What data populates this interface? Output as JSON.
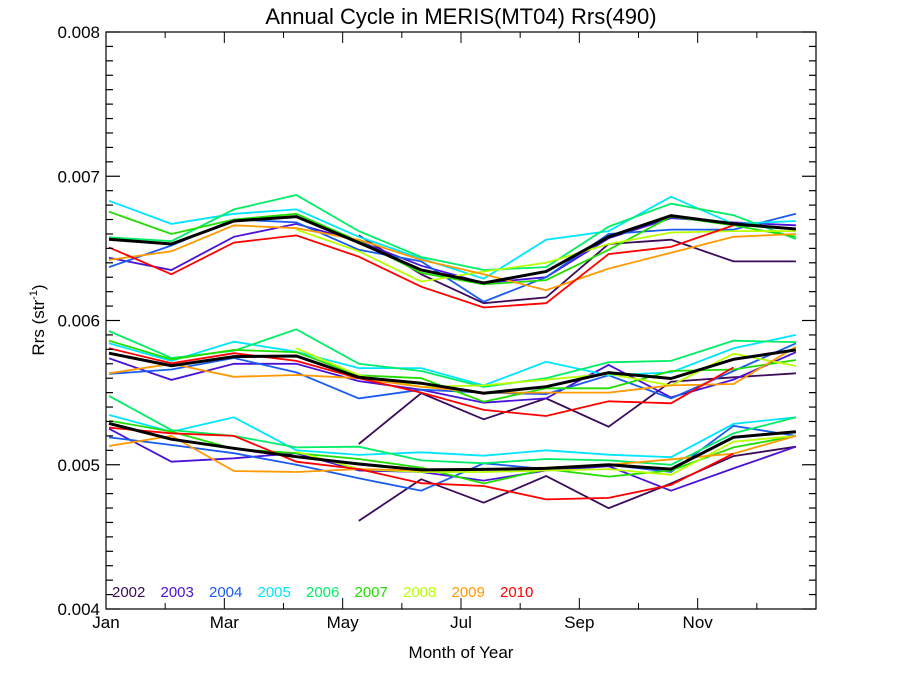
{
  "chart_data": {
    "type": "line",
    "title": "Annual Cycle in MERIS(MT04) Rrs(490)",
    "xlabel": "Month of Year",
    "ylabel": "Rrs (str",
    "ylabel_sup": "-1",
    "ylabel_close": ")",
    "ylim": [
      0.004,
      0.008
    ],
    "yticks": [
      "0.004",
      "0.005",
      "0.006",
      "0.007",
      "0.008"
    ],
    "ytick_values": [
      0.004,
      0.005,
      0.006,
      0.007,
      0.008
    ],
    "xlim": [
      0,
      12
    ],
    "xticks": [
      "Jan",
      "Mar",
      "May",
      "Jul",
      "Sep",
      "Nov"
    ],
    "xtick_values": [
      0,
      2,
      4,
      6,
      8,
      10
    ],
    "x": [
      0.05,
      1.106,
      2.161,
      3.217,
      4.272,
      5.328,
      6.383,
      7.439,
      8.494,
      9.55,
      10.605,
      11.66
    ],
    "grid": false,
    "legend": "bottom-left",
    "groups": [
      "upper",
      "middle",
      "lower"
    ],
    "series": [
      {
        "name": "2002",
        "color": "#3c0a5a",
        "group": "upper",
        "values": [
          null,
          null,
          null,
          null,
          0.00659,
          0.00632,
          0.00612,
          0.00616,
          0.00653,
          0.00656,
          0.00641,
          0.00641
        ]
      },
      {
        "name": "2003",
        "color": "#4a12d8",
        "group": "upper",
        "values": [
          0.006435,
          0.00635,
          0.00658,
          0.00667,
          0.00655,
          0.00638,
          0.00626,
          0.0063,
          0.00657,
          0.00671,
          0.00668,
          0.00666
        ]
      },
      {
        "name": "2004",
        "color": "#1a5cf0",
        "group": "upper",
        "values": [
          0.00637,
          0.00652,
          0.0067,
          0.00668,
          0.00649,
          0.00641,
          0.00613,
          0.0063,
          0.0066,
          0.00663,
          0.00663,
          0.00674
        ]
      },
      {
        "name": "2005",
        "color": "#00e5ff",
        "group": "upper",
        "values": [
          0.00683,
          0.00667,
          0.00674,
          0.00677,
          0.00658,
          0.00643,
          0.00629,
          0.00656,
          0.00662,
          0.006858,
          0.00667,
          0.00669
        ]
      },
      {
        "name": "2006",
        "color": "#00ee66",
        "group": "upper",
        "values": [
          0.006577,
          0.00655,
          0.00677,
          0.00687,
          0.00662,
          0.00644,
          0.00635,
          0.00637,
          0.00665,
          0.00681,
          0.00673,
          0.006565
        ]
      },
      {
        "name": "2007",
        "color": "#22dd00",
        "group": "upper",
        "values": [
          0.006754,
          0.0066,
          0.0067,
          0.00674,
          0.00655,
          0.00633,
          0.00625,
          0.00628,
          0.00649,
          0.00672,
          0.00666,
          0.00658
        ]
      },
      {
        "name": "2008",
        "color": "#b8ff00",
        "group": "upper",
        "values": [
          null,
          null,
          null,
          0.00663,
          0.00648,
          0.00627,
          0.00634,
          0.0064,
          0.00653,
          0.00661,
          0.00662,
          0.00662
        ]
      },
      {
        "name": "2009",
        "color": "#ff9900",
        "group": "upper",
        "values": [
          0.00642,
          0.00648,
          0.00666,
          0.00664,
          0.00656,
          0.00642,
          0.00632,
          0.00621,
          0.00636,
          0.00647,
          0.00658,
          0.0066
        ]
      },
      {
        "name": "2010",
        "color": "#ff0000",
        "group": "upper",
        "values": [
          0.006507,
          0.00632,
          0.00654,
          0.00659,
          0.006442,
          0.006234,
          0.00609,
          0.00612,
          0.00646,
          0.00651,
          0.00666,
          null
        ]
      },
      {
        "name": "mean",
        "color": "#000000",
        "group": "upper",
        "values": [
          0.006563,
          0.00653,
          0.00669,
          0.00672,
          0.00654,
          0.00635,
          0.00626,
          0.00634,
          0.00658,
          0.006727,
          0.00667,
          0.006634
        ]
      },
      {
        "name": "2002",
        "color": "#3c0a5a",
        "group": "middle",
        "values": [
          null,
          null,
          null,
          null,
          0.005144,
          0.005496,
          0.005315,
          0.00546,
          0.005264,
          0.005576,
          0.005606,
          0.005634
        ]
      },
      {
        "name": "2003",
        "color": "#4a12d8",
        "group": "middle",
        "values": [
          0.005738,
          0.005588,
          0.0057,
          0.0057,
          0.00558,
          0.00552,
          0.00543,
          0.00546,
          0.005692,
          0.005467,
          0.00559,
          0.00578
        ]
      },
      {
        "name": "2004",
        "color": "#1a5cf0",
        "group": "middle",
        "values": [
          0.00563,
          0.00566,
          0.00574,
          0.00564,
          0.00546,
          0.00552,
          0.0055,
          0.00549,
          0.00562,
          0.00546,
          0.00565,
          0.005842
        ]
      },
      {
        "name": "2005",
        "color": "#00e5ff",
        "group": "middle",
        "values": [
          0.005842,
          0.00572,
          0.005853,
          0.005784,
          0.00567,
          0.00567,
          0.00555,
          0.005714,
          0.00562,
          0.00564,
          0.005807,
          0.0059
        ]
      },
      {
        "name": "2006",
        "color": "#00ee66",
        "group": "middle",
        "values": [
          0.005927,
          0.00574,
          0.00579,
          0.005939,
          0.0057,
          0.00565,
          0.00554,
          0.0056,
          0.00571,
          0.00572,
          0.00586,
          0.00585
        ]
      },
      {
        "name": "2007",
        "color": "#22dd00",
        "group": "middle",
        "values": [
          0.00586,
          0.00573,
          0.005796,
          0.00578,
          0.00562,
          0.0056,
          0.005437,
          0.00553,
          0.00553,
          0.00565,
          0.00566,
          0.005726
        ]
      },
      {
        "name": "2008",
        "color": "#b8ff00",
        "group": "middle",
        "values": [
          null,
          null,
          null,
          0.005808,
          0.00562,
          0.00554,
          0.00555,
          0.00559,
          0.00563,
          0.00555,
          0.00577,
          0.005685
        ]
      },
      {
        "name": "2009",
        "color": "#ff9900",
        "group": "middle",
        "values": [
          0.005634,
          0.0057,
          0.00561,
          0.005622,
          0.0056,
          0.00554,
          0.0055,
          0.0055,
          0.0055,
          0.00555,
          0.00556,
          0.005818
        ]
      },
      {
        "name": "2010",
        "color": "#ff0000",
        "group": "middle",
        "values": [
          0.005807,
          0.005703,
          0.005773,
          0.00572,
          0.0056,
          0.0055,
          0.00538,
          0.005338,
          0.00544,
          0.005426,
          0.005675,
          null
        ]
      },
      {
        "name": "mean",
        "color": "#000000",
        "group": "middle",
        "values": [
          0.005773,
          0.005687,
          0.00575,
          0.005754,
          0.005606,
          0.005565,
          0.005496,
          0.005541,
          0.005638,
          0.005598,
          0.005731,
          0.005796
        ]
      },
      {
        "name": "2002",
        "color": "#3c0a5a",
        "group": "lower",
        "values": [
          null,
          null,
          null,
          null,
          0.004611,
          0.0049,
          0.004737,
          0.004922,
          0.004699,
          0.00487,
          0.00506,
          0.005125
        ]
      },
      {
        "name": "2003",
        "color": "#4a12d8",
        "group": "lower",
        "values": [
          0.00525,
          0.005021,
          0.005045,
          0.00508,
          0.00496,
          0.00495,
          0.00489,
          0.00496,
          0.00499,
          0.00482,
          0.004975,
          0.005125
        ]
      },
      {
        "name": "2004",
        "color": "#1a5cf0",
        "group": "lower",
        "values": [
          0.00519,
          0.005137,
          0.00508,
          0.005,
          0.004906,
          0.00482,
          0.00501,
          0.00497,
          0.005,
          0.00495,
          0.00527,
          0.0052
        ]
      },
      {
        "name": "2005",
        "color": "#00e5ff",
        "group": "lower",
        "values": [
          0.005345,
          0.005229,
          0.005329,
          0.0051,
          0.005068,
          0.005086,
          0.005063,
          0.0051,
          0.00507,
          0.005052,
          0.005283,
          0.005329
        ]
      },
      {
        "name": "2006",
        "color": "#00ee66",
        "group": "lower",
        "values": [
          0.005477,
          0.00524,
          0.0052,
          0.00512,
          0.005125,
          0.00503,
          0.00501,
          0.00504,
          0.00503,
          0.005,
          0.005218,
          0.005329
        ]
      },
      {
        "name": "2007",
        "color": "#22dd00",
        "group": "lower",
        "values": [
          0.005306,
          0.00523,
          0.00511,
          0.00508,
          0.00504,
          0.00498,
          0.00487,
          0.00497,
          0.004918,
          0.00496,
          0.00512,
          0.0052
        ]
      },
      {
        "name": "2008",
        "color": "#b8ff00",
        "group": "lower",
        "values": [
          null,
          null,
          null,
          0.00509,
          0.00497,
          0.00495,
          0.00495,
          0.00496,
          0.00497,
          0.00493,
          0.00516,
          0.0052
        ]
      },
      {
        "name": "2009",
        "color": "#ff9900",
        "group": "lower",
        "values": [
          0.00513,
          0.0052,
          0.004957,
          0.00495,
          0.00497,
          0.00496,
          0.00497,
          0.00498,
          0.005,
          0.005038,
          0.005077,
          0.0052
        ]
      },
      {
        "name": "2010",
        "color": "#ff0000",
        "group": "lower",
        "values": [
          0.005257,
          0.005218,
          0.0052,
          0.005021,
          0.00497,
          0.004872,
          0.004853,
          0.00476,
          0.00477,
          0.00486,
          0.005077,
          null
        ]
      },
      {
        "name": "mean",
        "color": "#000000",
        "group": "lower",
        "values": [
          0.005287,
          0.005177,
          0.005114,
          0.005056,
          0.005005,
          0.004964,
          0.004968,
          0.004975,
          0.005,
          0.00497,
          0.00519,
          0.005229
        ]
      }
    ],
    "legend_entries": [
      {
        "label": "2002",
        "color": "#3c0a5a"
      },
      {
        "label": "2003",
        "color": "#4a12d8"
      },
      {
        "label": "2004",
        "color": "#1a5cf0"
      },
      {
        "label": "2005",
        "color": "#00e5ff"
      },
      {
        "label": "2006",
        "color": "#00ee66"
      },
      {
        "label": "2007",
        "color": "#22dd00"
      },
      {
        "label": "2008",
        "color": "#b8ff00"
      },
      {
        "label": "2009",
        "color": "#ff9900"
      },
      {
        "label": "2010",
        "color": "#ff0000"
      }
    ]
  }
}
